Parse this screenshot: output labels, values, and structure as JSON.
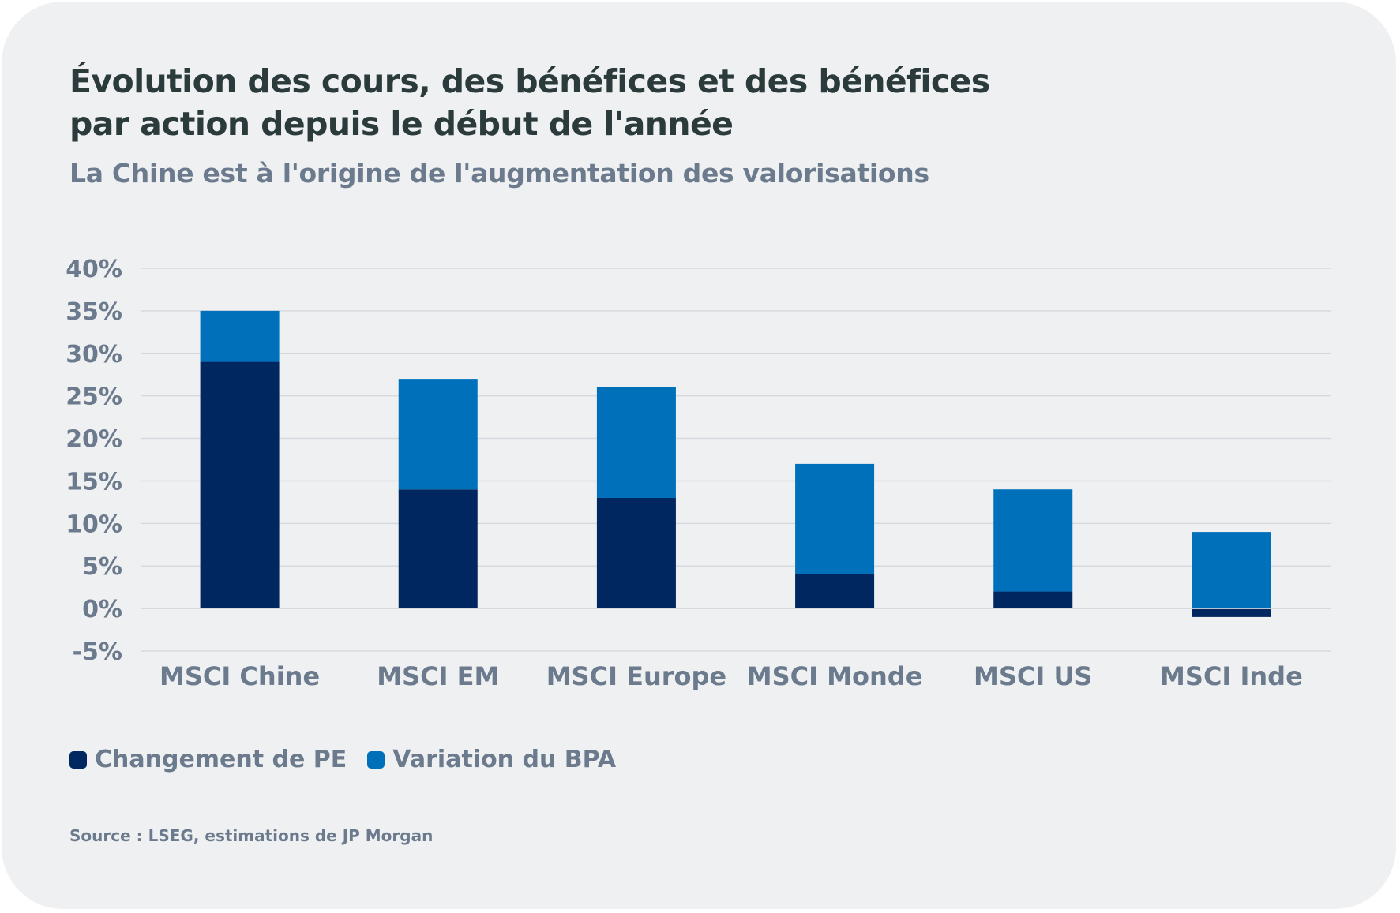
{
  "title": "Évolution des cours, des bénéfices et des bénéfices par action depuis le début de l'année",
  "subtitle": "La Chine est à l'origine de l'augmentation des valorisations",
  "source": "Source : LSEG, estimations de JP Morgan",
  "chart_data": {
    "type": "bar",
    "stacked": true,
    "categories": [
      "MSCI Chine",
      "MSCI EM",
      "MSCI Europe",
      "MSCI Monde",
      "MSCI US",
      "MSCI Inde"
    ],
    "series": [
      {
        "name": "Changement de PE",
        "color": "#00275f",
        "values": [
          29,
          14,
          13,
          4,
          2,
          -1
        ]
      },
      {
        "name": "Variation du BPA",
        "color": "#0070ba",
        "values": [
          6,
          13,
          13,
          13,
          12,
          9
        ]
      }
    ],
    "ylim": [
      -5,
      40
    ],
    "yticks": [
      -5,
      0,
      5,
      10,
      15,
      20,
      25,
      30,
      35,
      40
    ],
    "ytick_labels": [
      "-5%",
      "0%",
      "5%",
      "10%",
      "15%",
      "20%",
      "25%",
      "30%",
      "35%",
      "40%"
    ],
    "grid": true,
    "legend_position": "bottom-left"
  }
}
